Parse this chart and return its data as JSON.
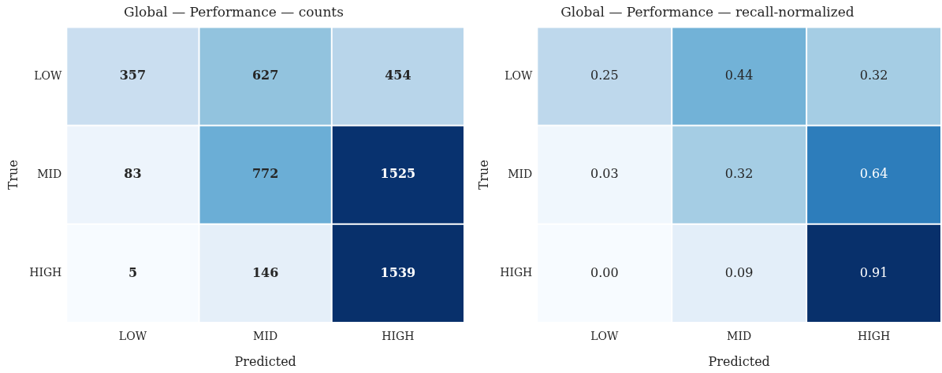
{
  "chart_data": [
    {
      "type": "heatmap",
      "title": "Global — Performance — counts",
      "xlabel": "Predicted",
      "ylabel": "True",
      "categories": [
        "LOW",
        "MID",
        "HIGH"
      ],
      "y_categories": [
        "LOW",
        "MID",
        "HIGH"
      ],
      "cells": [
        [
          357,
          627,
          454
        ],
        [
          83,
          772,
          1525
        ],
        [
          5,
          146,
          1539
        ]
      ],
      "data_labels": true
    },
    {
      "type": "heatmap",
      "title": "Global — Performance — recall-normalized",
      "xlabel": "Predicted",
      "ylabel": "True",
      "categories": [
        "LOW",
        "MID",
        "HIGH"
      ],
      "y_categories": [
        "LOW",
        "MID",
        "HIGH"
      ],
      "cells": [
        [
          0.25,
          0.44,
          0.32
        ],
        [
          0.03,
          0.32,
          0.64
        ],
        [
          0.0,
          0.09,
          0.91
        ]
      ],
      "cell_labels": [
        [
          "0.25",
          "0.44",
          "0.32"
        ],
        [
          "0.03",
          "0.32",
          "0.64"
        ],
        [
          "0.00",
          "0.09",
          "0.91"
        ]
      ]
    }
  ]
}
